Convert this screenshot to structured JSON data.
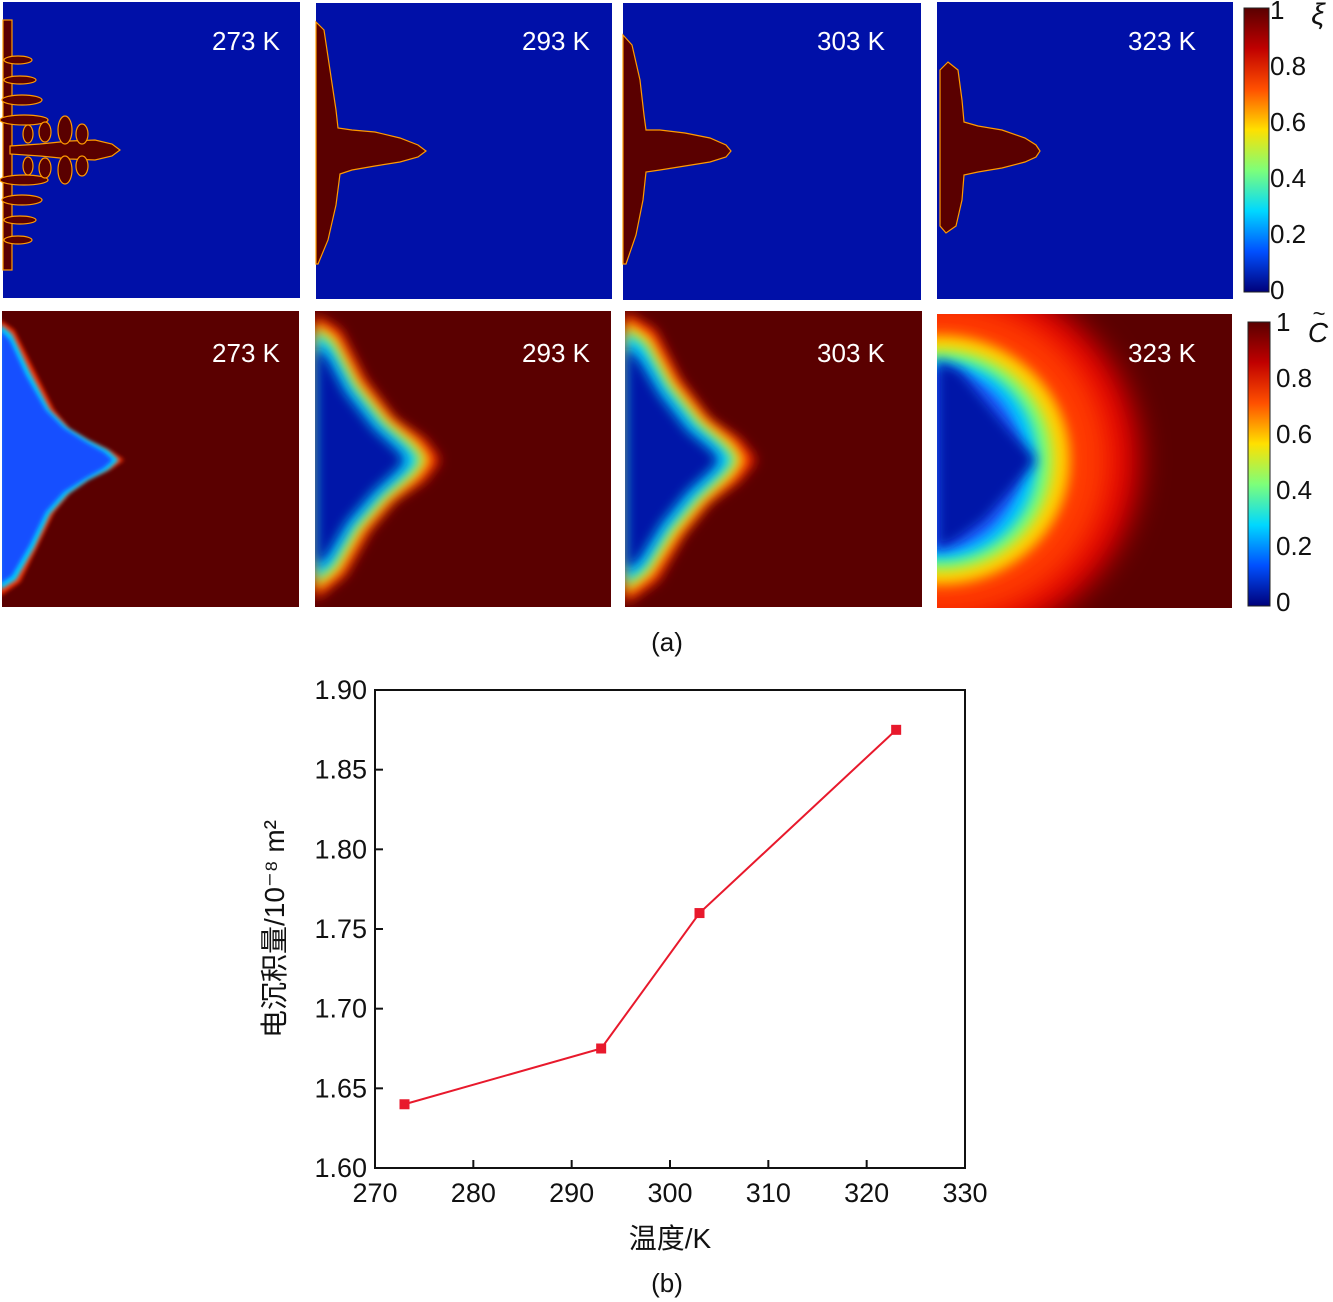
{
  "panel_a": {
    "caption": "(a)",
    "xi_symbol": "ξ",
    "c_symbol": "C",
    "c_symbol_accent": "~",
    "colorbar_ticks": [
      "1",
      "0.8",
      "0.6",
      "0.4",
      "0.2",
      "0"
    ],
    "colorbar_stops": [
      "#00007a",
      "#0050ff",
      "#00d8ff",
      "#7dff7a",
      "#ffe000",
      "#ff5000",
      "#c00000",
      "#5a0000"
    ],
    "field_colors": {
      "low": "#0010a8",
      "high": "#5a0000"
    },
    "top_row": [
      {
        "label": "273 K"
      },
      {
        "label": "293 K"
      },
      {
        "label": "303 K"
      },
      {
        "label": "323 K"
      }
    ],
    "bottom_row": [
      {
        "label": "273 K"
      },
      {
        "label": "293 K"
      },
      {
        "label": "303 K"
      },
      {
        "label": "323 K"
      }
    ]
  },
  "panel_b": {
    "caption": "(b)",
    "line_color": "#e8192c"
  },
  "chart_data": {
    "type": "line",
    "xlabel": "温度/K",
    "ylabel": "电沉积量/10⁻⁸ m²",
    "x": [
      273,
      293,
      303,
      323
    ],
    "y": [
      1.64,
      1.675,
      1.76,
      1.875
    ],
    "xlim": [
      270,
      330
    ],
    "ylim": [
      1.6,
      1.9
    ],
    "xticks": [
      "270",
      "280",
      "290",
      "300",
      "310",
      "320",
      "330"
    ],
    "yticks": [
      "1.60",
      "1.65",
      "1.70",
      "1.75",
      "1.80",
      "1.85",
      "1.90"
    ],
    "grid": false
  }
}
